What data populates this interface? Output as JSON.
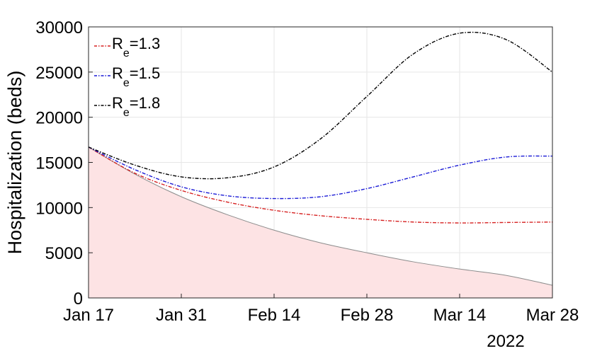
{
  "chart_data": {
    "type": "line",
    "ylabel": "Hospitalization (beds)",
    "xlabel": "",
    "x_secondary_label": "2022",
    "ylim": [
      0,
      30000
    ],
    "yticks": [
      0,
      5000,
      10000,
      15000,
      20000,
      25000,
      30000
    ],
    "yticklabels": [
      "0",
      "5000",
      "10000",
      "15000",
      "20000",
      "25000",
      "30000"
    ],
    "xlim": [
      0,
      70
    ],
    "xticks": [
      0,
      14,
      28,
      42,
      56,
      70
    ],
    "xticklabels": [
      "Jan 17",
      "Jan 31",
      "Feb 14",
      "Feb 28",
      "Mar 14",
      "Mar 28"
    ],
    "grid": true,
    "legend_position": "top-left",
    "baseline": {
      "style": "filled area",
      "fill_color": "#fde3e4",
      "line_color": "#8c8c8c",
      "x": [
        0,
        7,
        14,
        21,
        28,
        35,
        42,
        49,
        56,
        63,
        70
      ],
      "values": [
        16700,
        13700,
        11200,
        9200,
        7500,
        6100,
        5000,
        4000,
        3200,
        2500,
        1400
      ]
    },
    "series": [
      {
        "label_base": "R",
        "label_sub": "e",
        "label_value": "=1.3",
        "color": "#d62020",
        "x": [
          0,
          7,
          14,
          21,
          28,
          35,
          42,
          49,
          56,
          63,
          70
        ],
        "values": [
          16700,
          13800,
          11900,
          10600,
          9700,
          9100,
          8700,
          8400,
          8300,
          8350,
          8400
        ]
      },
      {
        "label_base": "R",
        "label_sub": "e",
        "label_value": "=1.5",
        "color": "#1a1ad6",
        "x": [
          0,
          7,
          14,
          21,
          28,
          35,
          42,
          49,
          56,
          63,
          70
        ],
        "values": [
          16700,
          14200,
          12300,
          11300,
          11000,
          11200,
          12100,
          13400,
          14700,
          15600,
          15700
        ]
      },
      {
        "label_base": "R",
        "label_sub": "e",
        "label_value": "=1.8",
        "color": "#000000",
        "x": [
          0,
          7,
          14,
          21,
          28,
          35,
          42,
          49,
          56,
          63,
          70
        ],
        "values": [
          16700,
          14700,
          13400,
          13300,
          14500,
          17600,
          22300,
          27000,
          29300,
          28600,
          25000
        ]
      }
    ]
  }
}
